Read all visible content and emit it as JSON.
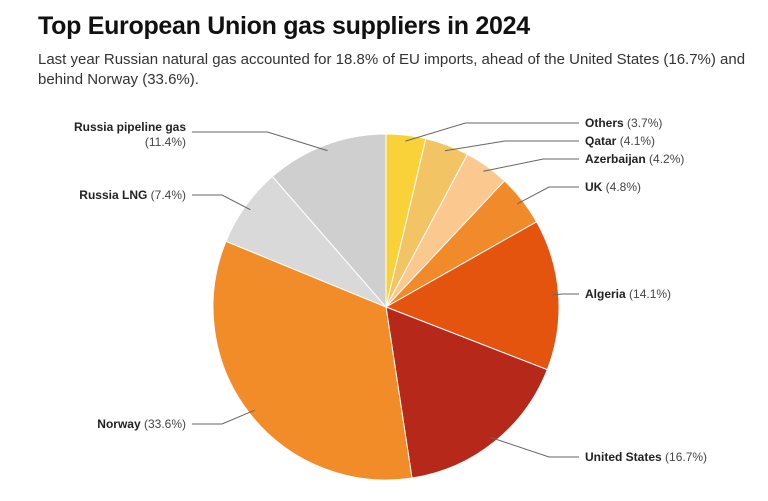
{
  "header": {
    "title": "Top European Union gas suppliers in 2024",
    "subtitle": "Last year Russian natural gas accounted for 18.8% of EU imports, ahead of the United States (16.7%) and behind Norway (33.6%)."
  },
  "chart_data": {
    "type": "pie",
    "start_angle_deg": 0,
    "direction": "clockwise",
    "slices": [
      {
        "name": "Others",
        "value": 3.7,
        "value_label": "(3.7%)",
        "color": "#f9d23a"
      },
      {
        "name": "Qatar",
        "value": 4.1,
        "value_label": "(4.1%)",
        "color": "#f2c464"
      },
      {
        "name": "Azerbaijan",
        "value": 4.2,
        "value_label": "(4.2%)",
        "color": "#fbc98f"
      },
      {
        "name": "UK",
        "value": 4.8,
        "value_label": "(4.8%)",
        "color": "#f08a2b"
      },
      {
        "name": "Algeria",
        "value": 14.1,
        "value_label": "(14.1%)",
        "color": "#e4540f"
      },
      {
        "name": "United States",
        "value": 16.7,
        "value_label": "(16.7%)",
        "color": "#b5281a"
      },
      {
        "name": "Norway",
        "value": 33.6,
        "value_label": "(33.6%)",
        "color": "#f28c28"
      },
      {
        "name": "Russia LNG",
        "value": 7.4,
        "value_label": "(7.4%)",
        "color": "#d9d9d9"
      },
      {
        "name": "Russia pipeline gas",
        "value": 11.4,
        "value_label": "(11.4%)",
        "color": "#cfcfcf"
      }
    ]
  }
}
